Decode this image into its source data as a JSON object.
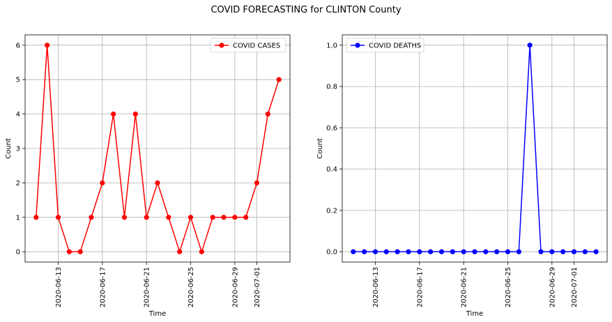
{
  "suptitle": "COVID FORECASTING for CLINTON County",
  "chart_data": [
    {
      "type": "line",
      "title": "",
      "xlabel": "Time",
      "ylabel": "Count",
      "x_start": "2020-06-11",
      "x_end": "2020-07-03",
      "x": [
        "2020-06-11",
        "2020-06-12",
        "2020-06-13",
        "2020-06-14",
        "2020-06-15",
        "2020-06-16",
        "2020-06-17",
        "2020-06-18",
        "2020-06-19",
        "2020-06-20",
        "2020-06-21",
        "2020-06-22",
        "2020-06-23",
        "2020-06-24",
        "2020-06-25",
        "2020-06-26",
        "2020-06-27",
        "2020-06-28",
        "2020-06-29",
        "2020-06-30",
        "2020-07-01",
        "2020-07-02",
        "2020-07-03"
      ],
      "xlim": [
        "2020-06-10",
        "2020-07-04"
      ],
      "xticks": [
        "2020-06-13",
        "2020-06-17",
        "2020-06-21",
        "2020-06-25",
        "2020-06-29",
        "2020-07-01"
      ],
      "ylim": [
        -0.3,
        6.3
      ],
      "yticks": [
        "0",
        "1",
        "2",
        "3",
        "4",
        "5",
        "6"
      ],
      "grid": true,
      "legend": "upper right",
      "series": [
        {
          "name": "COVID CASES",
          "color": "#ff0000",
          "values": [
            1,
            6,
            1,
            0,
            0,
            1,
            2,
            4,
            1,
            4,
            1,
            2,
            1,
            0,
            1,
            0,
            1,
            1,
            1,
            1,
            2,
            4,
            5
          ]
        }
      ]
    },
    {
      "type": "line",
      "title": "",
      "xlabel": "Time",
      "ylabel": "Count",
      "x_start": "2020-06-11",
      "x_end": "2020-07-03",
      "x": [
        "2020-06-11",
        "2020-06-12",
        "2020-06-13",
        "2020-06-14",
        "2020-06-15",
        "2020-06-16",
        "2020-06-17",
        "2020-06-18",
        "2020-06-19",
        "2020-06-20",
        "2020-06-21",
        "2020-06-22",
        "2020-06-23",
        "2020-06-24",
        "2020-06-25",
        "2020-06-26",
        "2020-06-27",
        "2020-06-28",
        "2020-06-29",
        "2020-06-30",
        "2020-07-01",
        "2020-07-02",
        "2020-07-03"
      ],
      "xlim": [
        "2020-06-10",
        "2020-07-04"
      ],
      "xticks": [
        "2020-06-13",
        "2020-06-17",
        "2020-06-21",
        "2020-06-25",
        "2020-06-29",
        "2020-07-01"
      ],
      "ylim": [
        -0.05,
        1.05
      ],
      "yticks": [
        "0.0",
        "0.2",
        "0.4",
        "0.6",
        "0.8",
        "1.0"
      ],
      "grid": true,
      "legend": "upper left",
      "series": [
        {
          "name": "COVID DEATHS",
          "color": "#0000ff",
          "values": [
            0,
            0,
            0,
            0,
            0,
            0,
            0,
            0,
            0,
            0,
            0,
            0,
            0,
            0,
            0,
            0,
            1,
            0,
            0,
            0,
            0,
            0,
            0
          ]
        }
      ]
    }
  ]
}
